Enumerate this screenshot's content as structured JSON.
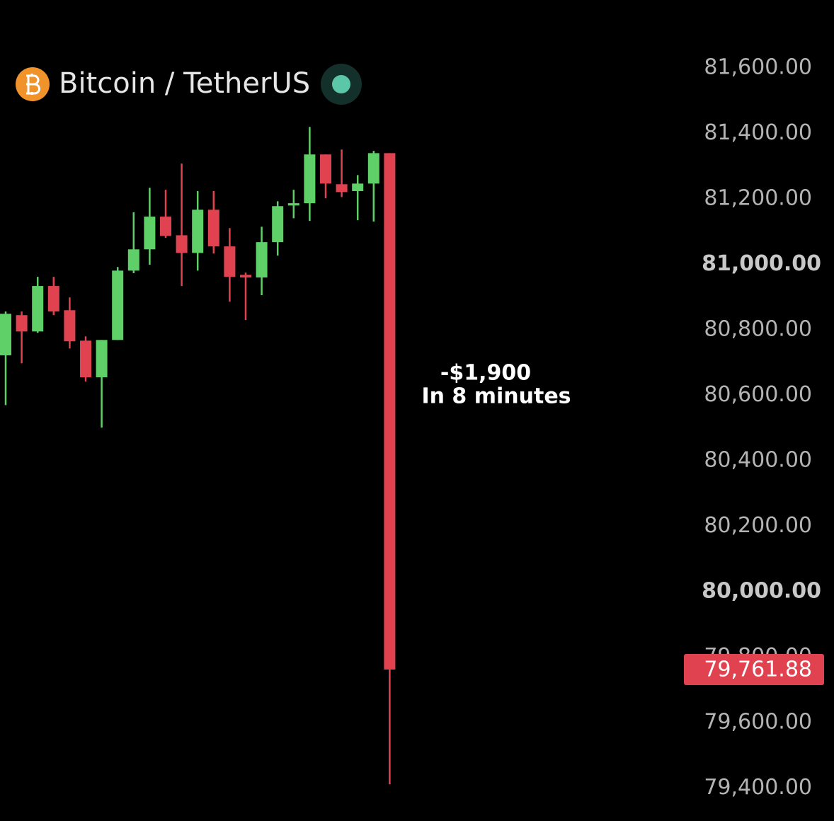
{
  "chart_data": {
    "type": "candlestick",
    "title": "Bitcoin / TetherUS",
    "up_color": "#5fd068",
    "down_color": "#e0434f",
    "candles": [
      {
        "open": 80722,
        "high": 80856,
        "low": 80570,
        "close": 80849
      },
      {
        "open": 80845,
        "high": 80856,
        "low": 80698,
        "close": 80795
      },
      {
        "open": 80795,
        "high": 80962,
        "low": 80791,
        "close": 80934
      },
      {
        "open": 80934,
        "high": 80962,
        "low": 80845,
        "close": 80856
      },
      {
        "open": 80860,
        "high": 80899,
        "low": 80743,
        "close": 80765
      },
      {
        "open": 80767,
        "high": 80780,
        "low": 80642,
        "close": 80655
      },
      {
        "open": 80655,
        "high": 80769,
        "low": 80501,
        "close": 80769
      },
      {
        "open": 80769,
        "high": 80992,
        "low": 80769,
        "close": 80981
      },
      {
        "open": 80981,
        "high": 81159,
        "low": 80973,
        "close": 81046
      },
      {
        "open": 81046,
        "high": 81234,
        "low": 80999,
        "close": 81146
      },
      {
        "open": 81146,
        "high": 81228,
        "low": 81081,
        "close": 81087
      },
      {
        "open": 81089,
        "high": 81308,
        "low": 80934,
        "close": 81035
      },
      {
        "open": 81035,
        "high": 81224,
        "low": 80981,
        "close": 81167
      },
      {
        "open": 81167,
        "high": 81224,
        "low": 81033,
        "close": 81055
      },
      {
        "open": 81055,
        "high": 81111,
        "low": 80886,
        "close": 80962
      },
      {
        "open": 80968,
        "high": 80975,
        "low": 80830,
        "close": 80960
      },
      {
        "open": 80960,
        "high": 81115,
        "low": 80906,
        "close": 81068
      },
      {
        "open": 81068,
        "high": 81193,
        "low": 81027,
        "close": 81178
      },
      {
        "open": 81180,
        "high": 81228,
        "low": 81141,
        "close": 81187
      },
      {
        "open": 81187,
        "high": 81420,
        "low": 81133,
        "close": 81336
      },
      {
        "open": 81336,
        "high": 81336,
        "low": 81202,
        "close": 81247
      },
      {
        "open": 81245,
        "high": 81351,
        "low": 81206,
        "close": 81221
      },
      {
        "open": 81224,
        "high": 81273,
        "low": 81135,
        "close": 81247
      },
      {
        "open": 81247,
        "high": 81347,
        "low": 81131,
        "close": 81340
      },
      {
        "open": 81340,
        "high": 81340,
        "low": 79411,
        "close": 79761.88
      }
    ],
    "ylim": [
      79299,
      81808
    ],
    "yticks": [
      {
        "value": 81600,
        "label": "81,600.00"
      },
      {
        "value": 81400,
        "label": "81,400.00"
      },
      {
        "value": 81200,
        "label": "81,200.00"
      },
      {
        "value": 81000,
        "label": "81,000.00"
      },
      {
        "value": 80800,
        "label": "80,800.00"
      },
      {
        "value": 80600,
        "label": "80,600.00"
      },
      {
        "value": 80400,
        "label": "80,400.00"
      },
      {
        "value": 80200,
        "label": "80,200.00"
      },
      {
        "value": 80000,
        "label": "80,000.00"
      },
      {
        "value": 79800,
        "label": "79,800.00"
      },
      {
        "value": 79600,
        "label": "79,600.00"
      },
      {
        "value": 79400,
        "label": "79,400.00"
      }
    ],
    "last_price": {
      "value": 79761.88,
      "label": "79,761.88"
    },
    "annotations": [
      "-$1,900",
      "In 8 minutes"
    ]
  }
}
